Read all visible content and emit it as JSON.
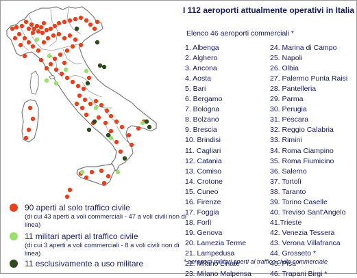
{
  "title": "I 112 aeroporti attualmente operativi in Italia",
  "list_title": "Elenco 46 aeroporti commerciali *",
  "airports": [
    "1. Albenga",
    "2. Alghero",
    "3. Ancona",
    "4. Aosta",
    "5. Bari",
    "6. Bergamo",
    "7. Bologna",
    "8. Bolzano",
    "9. Brescia",
    "10. Brindisi",
    "11. Cagliari",
    "12. Catania",
    "13. Comiso",
    "14. Crotone",
    "15. Cuneo",
    "16. Firenze",
    "17. Foggia",
    "18. Forlì",
    "19. Genova",
    "20. Lamezia Terme",
    "21. Lampedusa",
    "22. Milano Linate",
    "23. Milano Malpensa",
    "24. Marina di Campo",
    "25. Napoli",
    "26. Olbia",
    "27. Palermo Punta Raisi",
    "28. Pantelleria",
    "29. Parma",
    "30. Perugia",
    "31. Pescara",
    "32. Reggio Calabria",
    "33. Rimini",
    "34. Roma Ciampino",
    "35. Roma Fiumicino",
    "36. Salerno",
    "37. Tortolì",
    "38. Taranto",
    "39. Torino Caselle",
    "40. Treviso Sant'Angelo",
    "41.Trieste",
    "42. Venezia Tessera",
    "43. Verona Villafranca",
    "44. Grosseto *",
    "45. Pisa *",
    "46. Trapani Birgi *"
  ],
  "legend": [
    {
      "label": "90 aperti al solo traffico civile",
      "note": "(di cui 43 aperti a voli commerciali - 47 a voli civili non di linea)",
      "color": "#e8401c"
    },
    {
      "label": "11 militari aperti al traffico civile",
      "note": "(di cui 3 aperti a voli commerciali - 8 a voli civili non di linea)",
      "color": "#9ae070"
    },
    {
      "label": "11 esclusivamente a uso militare",
      "note": "",
      "color": "#2d4a1c"
    }
  ],
  "footnote": "* aeroporti militari aperti al traffico civile commerciale",
  "colors": {
    "civil": "#e8401c",
    "military_civil": "#9ae070",
    "military": "#2d4a1c",
    "land": "#ffffff",
    "border": "#7a7a7a",
    "text": "#14195a"
  }
}
